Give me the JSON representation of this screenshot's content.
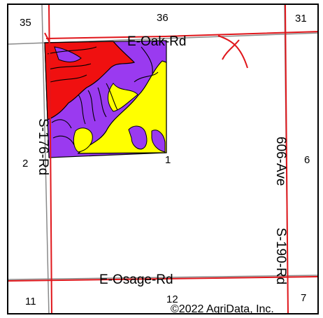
{
  "map": {
    "section_numbers": {
      "nw": "35",
      "n": "36",
      "ne": "31",
      "w": "2",
      "center": "1",
      "e": "6",
      "sw": "11",
      "s": "12",
      "se": "7"
    },
    "roads": {
      "north": "E-Oak-Rd",
      "west": "S-176-Rd",
      "east_upper": "606-Ave",
      "east_lower": "S-190-Rd",
      "south": "E-Osage-Rd"
    },
    "copyright": "©2022 AgriData, Inc."
  },
  "colors": {
    "road": "#e0161b",
    "section_line": "#8a8a8a",
    "soil_purple": "#9a3af0",
    "soil_red": "#f01010",
    "soil_yellow": "#ffff00",
    "boundary": "#000000"
  }
}
